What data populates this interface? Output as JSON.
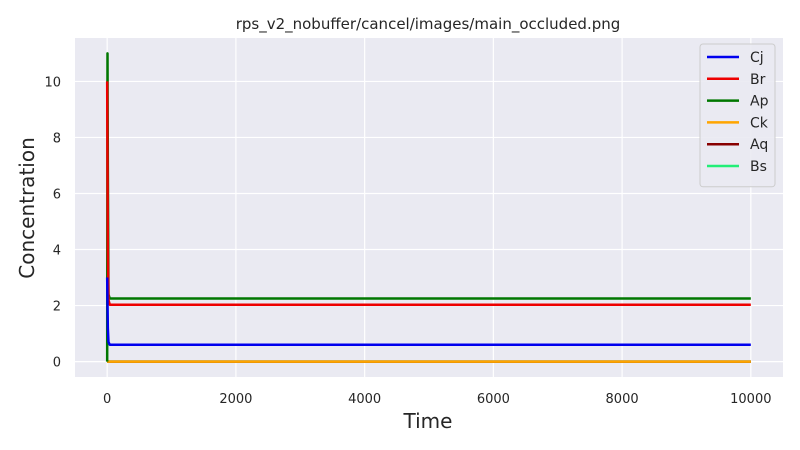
{
  "chart_data": {
    "type": "line",
    "title": "rps_v2_nobuffer/cancel/images/main_occluded.png",
    "xlabel": "Time",
    "ylabel": "Concentration",
    "xlim": [
      -500,
      10500
    ],
    "ylim": [
      -0.55,
      11.55
    ],
    "xticks": [
      0,
      2000,
      4000,
      6000,
      8000,
      10000
    ],
    "yticks": [
      0,
      2,
      4,
      6,
      8,
      10
    ],
    "grid": true,
    "legend_position": "top-right",
    "series": [
      {
        "name": "Cj",
        "color": "#0000ee",
        "x": [
          0,
          10,
          20,
          40,
          10000
        ],
        "y": [
          3.0,
          1.2,
          0.7,
          0.6,
          0.6
        ]
      },
      {
        "name": "Br",
        "color": "#ee0000",
        "x": [
          0,
          10,
          20,
          40,
          10000
        ],
        "y": [
          10.0,
          4.0,
          2.2,
          2.03,
          2.03
        ]
      },
      {
        "name": "Ap",
        "color": "#007700",
        "x": [
          0,
          5,
          10,
          20,
          40,
          10000
        ],
        "y": [
          0.0,
          11.0,
          7.0,
          2.4,
          2.25,
          2.25
        ]
      },
      {
        "name": "Ck",
        "color": "#ffa500",
        "x": [
          0,
          10000
        ],
        "y": [
          0.0,
          0.0
        ]
      },
      {
        "name": "Aq",
        "color": "#880000",
        "x": [
          0,
          10000
        ],
        "y": [
          0.0,
          0.0
        ]
      },
      {
        "name": "Bs",
        "color": "#22ee77",
        "x": [
          0,
          10000
        ],
        "y": [
          0.0,
          0.0
        ]
      }
    ]
  }
}
